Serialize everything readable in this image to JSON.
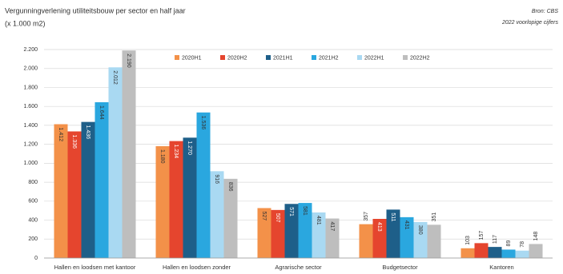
{
  "chart_data": {
    "type": "bar",
    "title": "Vergunningverlening utiliteitsbouw per sector en half jaar",
    "subtitle": "(x 1.000 m2)",
    "source": "Bron: CBS",
    "note": "2022 voorlopige cijfers",
    "categories": [
      "Hallen en loodsen met kantoor",
      "Hallen en loodsen zonder",
      "Agrarische sector",
      "Budgetsector",
      "Kantoren"
    ],
    "series": [
      {
        "name": "2020H1",
        "color": "#f39149",
        "values": [
          1412,
          1180,
          527,
          357,
          103
        ],
        "value_labels": [
          "1.412",
          "1.180",
          "527",
          "357",
          "103"
        ]
      },
      {
        "name": "2020H2",
        "color": "#e5452e",
        "values": [
          1336,
          1234,
          507,
          413,
          157
        ],
        "value_labels": [
          "1.336",
          "1.234",
          "507",
          "413",
          "157"
        ]
      },
      {
        "name": "2021H1",
        "color": "#1e5f89",
        "values": [
          1436,
          1270,
          571,
          511,
          117
        ],
        "value_labels": [
          "1.436",
          "1.270",
          "571",
          "511",
          "117"
        ]
      },
      {
        "name": "2021H2",
        "color": "#2aa7df",
        "values": [
          1644,
          1536,
          581,
          431,
          89
        ],
        "value_labels": [
          "1.644",
          "1.536",
          "581",
          "431",
          "89"
        ]
      },
      {
        "name": "2022H1",
        "color": "#a9d9f2",
        "values": [
          2012,
          916,
          481,
          380,
          78
        ],
        "value_labels": [
          "2.012",
          "916",
          "481",
          "380",
          "78"
        ]
      },
      {
        "name": "2022H2",
        "color": "#bebebe",
        "values": [
          2190,
          836,
          417,
          351,
          148
        ],
        "value_labels": [
          "2.190",
          "836",
          "417",
          "351",
          "148"
        ]
      }
    ],
    "ylim": [
      0,
      2200
    ],
    "yticks": [
      0,
      200,
      400,
      600,
      800,
      {
        "value": 1000,
        "label": "1.000"
      },
      {
        "value": 1200,
        "label": "1.200"
      },
      {
        "value": 1400,
        "label": "1.400"
      },
      {
        "value": 1600,
        "label": "1.600"
      },
      {
        "value": 1800,
        "label": "1.800"
      },
      {
        "value": 2000,
        "label": "2.000"
      },
      {
        "value": 2200,
        "label": "2.200"
      }
    ],
    "grid": true
  }
}
